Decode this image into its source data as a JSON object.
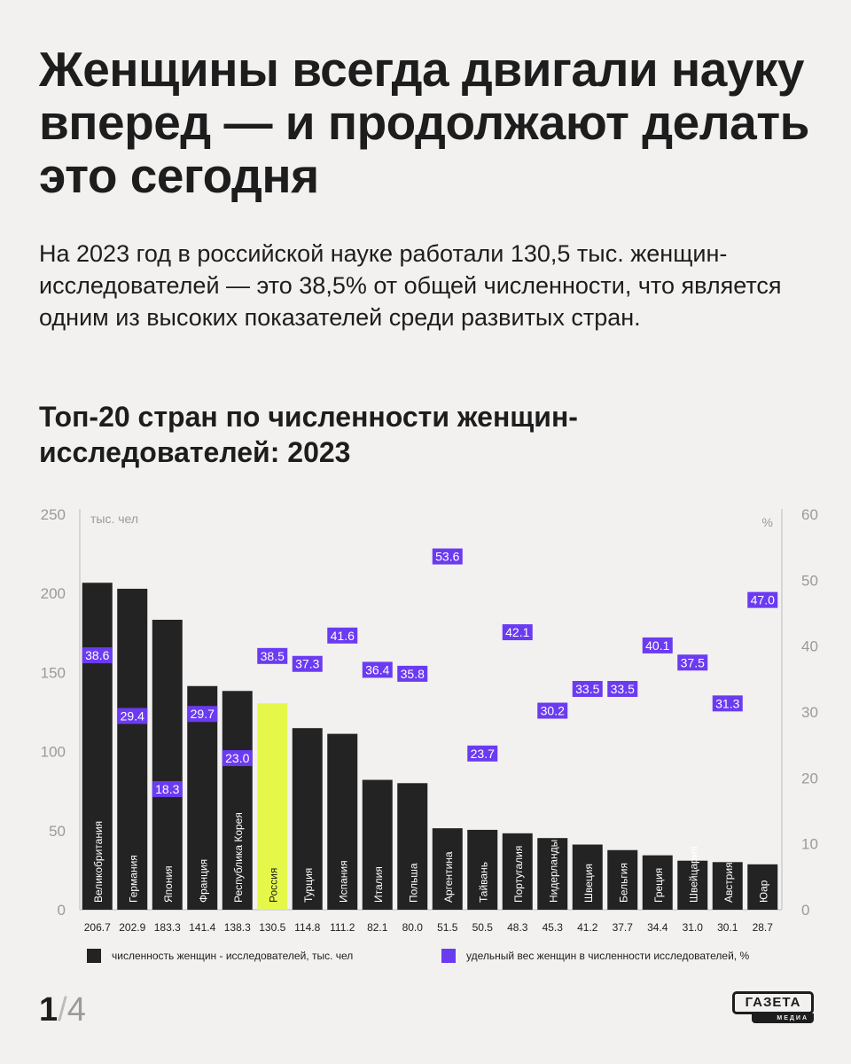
{
  "header": {
    "title": "Женщины всегда двигали науку вперед — и продолжают делать это сегодня",
    "lead": "На 2023 год в российской науке работали 130,5 тыс. женщин-исследователей — это 38,5% от общей численности, что является одним из высоких показателей среди развитых стран.",
    "chart_title": "Топ-20 стран по численности женщин-исследователей: 2023"
  },
  "chart_data": {
    "type": "bar",
    "title": "Топ-20 стран по численности женщин-исследователей: 2023",
    "categories": [
      "Великобритания",
      "Германия",
      "Япония",
      "Франция",
      "Республика Корея",
      "Россия",
      "Турция",
      "Испания",
      "Италия",
      "Польша",
      "Аргентина",
      "Тайвань",
      "Португалия",
      "Нидерланды",
      "Швеция",
      "Бельгия",
      "Греция",
      "Швейцария",
      "Австрия",
      "Юар"
    ],
    "series": [
      {
        "name": "численность женщин - исследователей, тыс. чел",
        "axis": "left",
        "color": "#232323",
        "values": [
          206.7,
          202.9,
          183.3,
          141.4,
          138.3,
          130.5,
          114.8,
          111.2,
          82.1,
          80.0,
          51.5,
          50.5,
          48.3,
          45.3,
          41.2,
          37.7,
          34.4,
          31.0,
          30.1,
          28.7
        ],
        "labels": [
          "206.7",
          "202.9",
          "183.3",
          "141.4",
          "138.3",
          "130.5",
          "114.8",
          "111.2",
          "82.1",
          "80.0",
          "51.5",
          "50.5",
          "48.3",
          "45.3",
          "41.2",
          "37.7",
          "34.4",
          "31.0",
          "30.1",
          "28.7"
        ]
      },
      {
        "name": "удельный вес женщин в численности исследователей, %",
        "axis": "right",
        "color": "#6b3bf2",
        "values": [
          38.6,
          29.4,
          18.3,
          29.7,
          23.0,
          38.5,
          37.3,
          41.6,
          36.4,
          35.8,
          53.6,
          23.7,
          42.1,
          30.2,
          33.5,
          33.5,
          40.1,
          37.5,
          31.3,
          47.0
        ],
        "labels": [
          "38.6",
          "29.4",
          "18.3",
          "29.7",
          "23.0",
          "38.5",
          "37.3",
          "41.6",
          "36.4",
          "35.8",
          "53.6",
          "23.7",
          "42.1",
          "30.2",
          "33.5",
          "33.5",
          "40.1",
          "37.5",
          "31.3",
          "47.0"
        ]
      }
    ],
    "highlight": {
      "category": "Россия",
      "color": "#e5f84a"
    },
    "ylabel": "тыс. чел",
    "ylabel_right": "%",
    "ylim": [
      0,
      250
    ],
    "ylim_right": [
      0,
      60
    ],
    "yticks": [
      "0",
      "50",
      "100",
      "150",
      "200",
      "250"
    ],
    "yticks_right": [
      "0",
      "10",
      "20",
      "30",
      "40",
      "50",
      "60"
    ],
    "grid": false,
    "legend_position": "bottom"
  },
  "legend": {
    "count_label": "численность женщин - исследователей, тыс. чел",
    "share_label": "удельный вес женщин в численности исследователей, %"
  },
  "footer": {
    "page_current": "1",
    "page_sep": "/",
    "page_total": "4",
    "logo_text": "ГАЗЕТА",
    "logo_sub": "МЕДИА"
  }
}
